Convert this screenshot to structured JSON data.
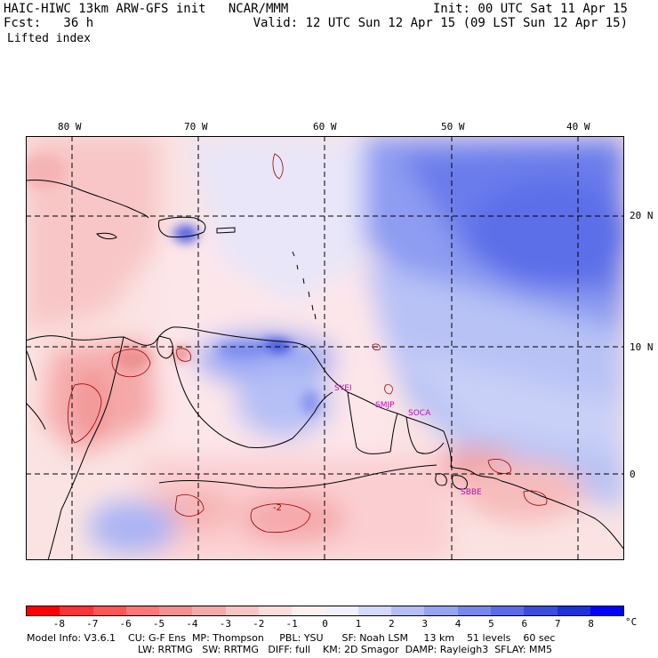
{
  "header": {
    "line1_left": "HAIC-HIWC 13km ARW-GFS init   NCAR/MMM",
    "line1_right": "Init: 00 UTC Sat 11 Apr 15",
    "line2_left": "Fcst:   36 h",
    "line2_right": "Valid: 12 UTC Sun 12 Apr 15 (09 LST Sun 12 Apr 15)",
    "field_name": "Lifted index"
  },
  "map": {
    "lon_labels": [
      "80 W",
      "70 W",
      "60 W",
      "50 W",
      "40 W"
    ],
    "lat_labels": [
      "20 N",
      "10 N",
      "0"
    ],
    "cities": [
      "SYEI",
      "SMJP",
      "SOCA",
      "SBBE"
    ],
    "contour_labels": [
      "-2"
    ]
  },
  "colorbar": {
    "unit": "°C",
    "labels": [
      "-8",
      "-7",
      "-6",
      "-5",
      "-4",
      "-3",
      "-2",
      "-1",
      "0",
      "1",
      "2",
      "3",
      "4",
      "5",
      "6",
      "7",
      "8"
    ],
    "colors": [
      "#ff0000",
      "#ff3333",
      "#ff5555",
      "#ff7777",
      "#f58f8f",
      "#f7a8a8",
      "#fbc4c4",
      "#fddcdc",
      "#fff0f0",
      "#f0f0ff",
      "#d4d8fb",
      "#b5bdf7",
      "#96a2f3",
      "#7887ef",
      "#5b6be9",
      "#3a4ce2",
      "#1c30dc",
      "#0000ff"
    ]
  },
  "footer": {
    "line1": "Model Info: V3.6.1    CU: G-F Ens  MP: Thompson     PBL: YSU      SF: Noah LSM     13 km    51 levels    60 sec",
    "line2": "LW: RRTMG   SW: RRTMG   DIFF: full    KM: 2D Smagor  DAMP: Rayleigh3  SFLAY: MM5"
  }
}
